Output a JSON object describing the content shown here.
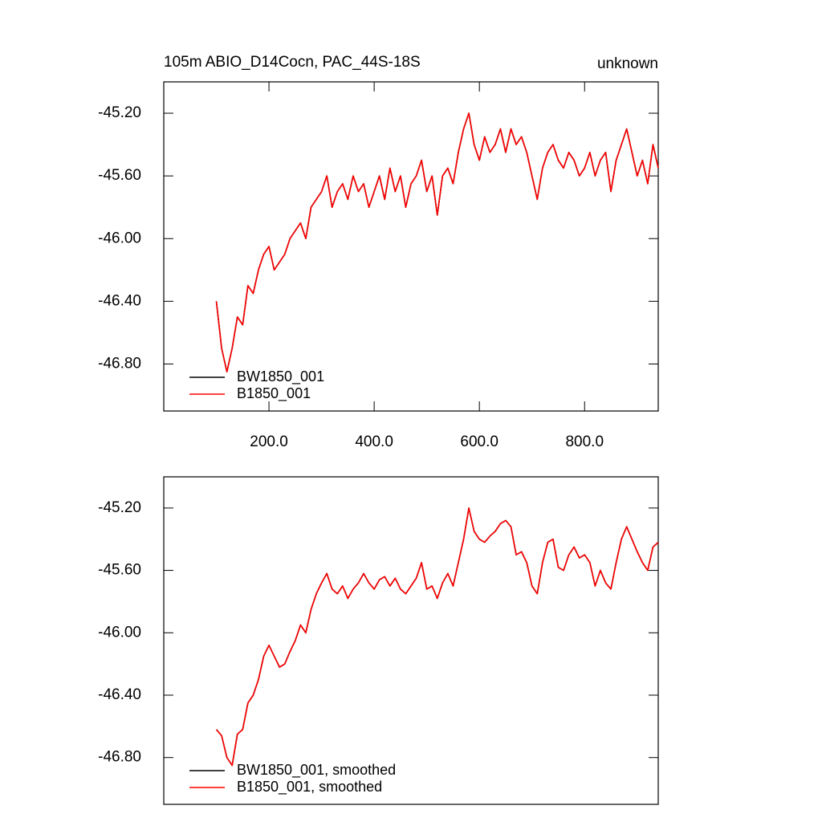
{
  "chart_data": [
    {
      "type": "line",
      "title": "105m ABIO_D14Cocn, PAC_44S-18S",
      "subtitle": "unknown",
      "x": [
        100,
        110,
        120,
        130,
        140,
        150,
        160,
        170,
        180,
        190,
        200,
        210,
        220,
        230,
        240,
        250,
        260,
        270,
        280,
        290,
        300,
        310,
        320,
        330,
        340,
        350,
        360,
        370,
        380,
        390,
        400,
        410,
        420,
        430,
        440,
        450,
        460,
        470,
        480,
        490,
        500,
        510,
        520,
        530,
        540,
        550,
        560,
        570,
        580,
        590,
        600,
        610,
        620,
        630,
        640,
        650,
        660,
        670,
        680,
        690,
        700,
        710,
        720,
        730,
        740,
        750,
        760,
        770,
        780,
        790,
        800,
        810,
        820,
        830,
        840,
        850,
        860,
        870,
        880,
        890,
        900,
        910,
        920,
        930,
        940
      ],
      "series": [
        {
          "name": "BW1850_001",
          "color": "#000000",
          "values": [
            -46.4,
            -46.7,
            -46.85,
            -46.7,
            -46.5,
            -46.55,
            -46.3,
            -46.35,
            -46.2,
            -46.1,
            -46.05,
            -46.2,
            -46.15,
            -46.1,
            -46.0,
            -45.95,
            -45.9,
            -46.0,
            -45.8,
            -45.75,
            -45.7,
            -45.6,
            -45.8,
            -45.7,
            -45.65,
            -45.75,
            -45.6,
            -45.7,
            -45.65,
            -45.8,
            -45.7,
            -45.6,
            -45.75,
            -45.55,
            -45.7,
            -45.6,
            -45.8,
            -45.65,
            -45.6,
            -45.5,
            -45.7,
            -45.6,
            -45.85,
            -45.6,
            -45.55,
            -45.65,
            -45.45,
            -45.3,
            -45.2,
            -45.4,
            -45.5,
            -45.35,
            -45.45,
            -45.4,
            -45.3,
            -45.45,
            -45.3,
            -45.4,
            -45.35,
            -45.45,
            -45.6,
            -45.75,
            -45.55,
            -45.45,
            -45.4,
            -45.5,
            -45.55,
            -45.45,
            -45.5,
            -45.6,
            -45.55,
            -45.45,
            -45.6,
            -45.5,
            -45.45,
            -45.7,
            -45.5,
            -45.4,
            -45.3,
            -45.45,
            -45.6,
            -45.5,
            -45.65,
            -45.4,
            -45.55
          ]
        },
        {
          "name": "B1850_001",
          "color": "#ff0000",
          "values": [
            -46.4,
            -46.7,
            -46.85,
            -46.7,
            -46.5,
            -46.55,
            -46.3,
            -46.35,
            -46.2,
            -46.1,
            -46.05,
            -46.2,
            -46.15,
            -46.1,
            -46.0,
            -45.95,
            -45.9,
            -46.0,
            -45.8,
            -45.75,
            -45.7,
            -45.6,
            -45.8,
            -45.7,
            -45.65,
            -45.75,
            -45.6,
            -45.7,
            -45.65,
            -45.8,
            -45.7,
            -45.6,
            -45.75,
            -45.55,
            -45.7,
            -45.6,
            -45.8,
            -45.65,
            -45.6,
            -45.5,
            -45.7,
            -45.6,
            -45.85,
            -45.6,
            -45.55,
            -45.65,
            -45.45,
            -45.3,
            -45.2,
            -45.4,
            -45.5,
            -45.35,
            -45.45,
            -45.4,
            -45.3,
            -45.45,
            -45.3,
            -45.4,
            -45.35,
            -45.45,
            -45.6,
            -45.75,
            -45.55,
            -45.45,
            -45.4,
            -45.5,
            -45.55,
            -45.45,
            -45.5,
            -45.6,
            -45.55,
            -45.45,
            -45.6,
            -45.5,
            -45.45,
            -45.7,
            -45.5,
            -45.4,
            -45.3,
            -45.45,
            -45.6,
            -45.5,
            -45.65,
            -45.4,
            -45.55
          ]
        }
      ],
      "xlim": [
        0,
        940
      ],
      "xticks": [
        {
          "value": 200,
          "label": "200.0"
        },
        {
          "value": 400,
          "label": "400.0"
        },
        {
          "value": 600,
          "label": "600.0"
        },
        {
          "value": 800,
          "label": "800.0"
        }
      ],
      "ylim": [
        -47.1,
        -45.0
      ],
      "yticks": [
        {
          "value": -46.8,
          "label": "-46.80"
        },
        {
          "value": -46.4,
          "label": "-46.40"
        },
        {
          "value": -46.0,
          "label": "-46.00"
        },
        {
          "value": -45.6,
          "label": "-45.60"
        },
        {
          "value": -45.2,
          "label": "-45.20"
        }
      ],
      "legend": "lower left"
    },
    {
      "type": "line",
      "x": [
        100,
        110,
        120,
        130,
        140,
        150,
        160,
        170,
        180,
        190,
        200,
        210,
        220,
        230,
        240,
        250,
        260,
        270,
        280,
        290,
        300,
        310,
        320,
        330,
        340,
        350,
        360,
        370,
        380,
        390,
        400,
        410,
        420,
        430,
        440,
        450,
        460,
        470,
        480,
        490,
        500,
        510,
        520,
        530,
        540,
        550,
        560,
        570,
        580,
        590,
        600,
        610,
        620,
        630,
        640,
        650,
        660,
        670,
        680,
        690,
        700,
        710,
        720,
        730,
        740,
        750,
        760,
        770,
        780,
        790,
        800,
        810,
        820,
        830,
        840,
        850,
        860,
        870,
        880,
        890,
        900,
        910,
        920,
        930,
        940
      ],
      "series": [
        {
          "name": "BW1850_001, smoothed",
          "color": "#000000",
          "values": [
            -46.62,
            -46.66,
            -46.8,
            -46.85,
            -46.65,
            -46.62,
            -46.45,
            -46.4,
            -46.3,
            -46.15,
            -46.08,
            -46.15,
            -46.22,
            -46.2,
            -46.12,
            -46.05,
            -45.95,
            -46.0,
            -45.85,
            -45.75,
            -45.68,
            -45.62,
            -45.72,
            -45.75,
            -45.7,
            -45.78,
            -45.72,
            -45.68,
            -45.62,
            -45.68,
            -45.72,
            -45.66,
            -45.64,
            -45.7,
            -45.65,
            -45.72,
            -45.75,
            -45.7,
            -45.65,
            -45.55,
            -45.72,
            -45.7,
            -45.78,
            -45.68,
            -45.62,
            -45.7,
            -45.55,
            -45.4,
            -45.2,
            -45.35,
            -45.4,
            -45.42,
            -45.38,
            -45.35,
            -45.3,
            -45.28,
            -45.32,
            -45.5,
            -45.48,
            -45.55,
            -45.7,
            -45.75,
            -45.55,
            -45.42,
            -45.4,
            -45.58,
            -45.6,
            -45.5,
            -45.45,
            -45.52,
            -45.5,
            -45.55,
            -45.7,
            -45.6,
            -45.68,
            -45.72,
            -45.55,
            -45.4,
            -45.32,
            -45.4,
            -45.48,
            -45.55,
            -45.6,
            -45.45,
            -45.42
          ]
        },
        {
          "name": "B1850_001, smoothed",
          "color": "#ff0000",
          "values": [
            -46.62,
            -46.66,
            -46.8,
            -46.85,
            -46.65,
            -46.62,
            -46.45,
            -46.4,
            -46.3,
            -46.15,
            -46.08,
            -46.15,
            -46.22,
            -46.2,
            -46.12,
            -46.05,
            -45.95,
            -46.0,
            -45.85,
            -45.75,
            -45.68,
            -45.62,
            -45.72,
            -45.75,
            -45.7,
            -45.78,
            -45.72,
            -45.68,
            -45.62,
            -45.68,
            -45.72,
            -45.66,
            -45.64,
            -45.7,
            -45.65,
            -45.72,
            -45.75,
            -45.7,
            -45.65,
            -45.55,
            -45.72,
            -45.7,
            -45.78,
            -45.68,
            -45.62,
            -45.7,
            -45.55,
            -45.4,
            -45.2,
            -45.35,
            -45.4,
            -45.42,
            -45.38,
            -45.35,
            -45.3,
            -45.28,
            -45.32,
            -45.5,
            -45.48,
            -45.55,
            -45.7,
            -45.75,
            -45.55,
            -45.42,
            -45.4,
            -45.58,
            -45.6,
            -45.5,
            -45.45,
            -45.52,
            -45.5,
            -45.55,
            -45.7,
            -45.6,
            -45.68,
            -45.72,
            -45.55,
            -45.4,
            -45.32,
            -45.4,
            -45.48,
            -45.55,
            -45.6,
            -45.45,
            -45.42
          ]
        }
      ],
      "xlim": [
        0,
        940
      ],
      "ylim": [
        -47.1,
        -45.0
      ],
      "yticks": [
        {
          "value": -46.8,
          "label": "-46.80"
        },
        {
          "value": -46.4,
          "label": "-46.40"
        },
        {
          "value": -46.0,
          "label": "-46.00"
        },
        {
          "value": -45.6,
          "label": "-45.60"
        },
        {
          "value": -45.2,
          "label": "-45.20"
        }
      ],
      "legend": "lower left"
    }
  ]
}
